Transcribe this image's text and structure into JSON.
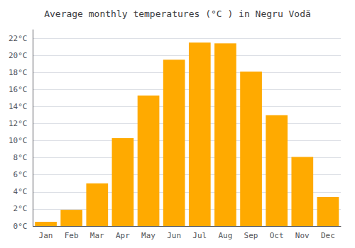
{
  "chart_data": {
    "type": "bar",
    "title": "Average monthly temperatures (°C ) in Negru Vodă",
    "categories": [
      "Jan",
      "Feb",
      "Mar",
      "Apr",
      "May",
      "Jun",
      "Jul",
      "Aug",
      "Sep",
      "Oct",
      "Nov",
      "Dec"
    ],
    "values": [
      0.5,
      1.9,
      5.0,
      10.3,
      15.3,
      19.5,
      21.5,
      21.4,
      18.1,
      13.0,
      8.1,
      3.4
    ],
    "color": "#FFAA00",
    "ylim": [
      0,
      23
    ],
    "yticks": [
      {
        "value": 0,
        "label": "0°C"
      },
      {
        "value": 2,
        "label": "2°C"
      },
      {
        "value": 4,
        "label": "4°C"
      },
      {
        "value": 6,
        "label": "6°C"
      },
      {
        "value": 8,
        "label": "8°C"
      },
      {
        "value": 10,
        "label": "10°C"
      },
      {
        "value": 12,
        "label": "12°C"
      },
      {
        "value": 14,
        "label": "14°C"
      },
      {
        "value": 16,
        "label": "16°C"
      },
      {
        "value": 18,
        "label": "18°C"
      },
      {
        "value": 20,
        "label": "20°C"
      },
      {
        "value": 22,
        "label": "22°C"
      }
    ],
    "grid": true
  }
}
